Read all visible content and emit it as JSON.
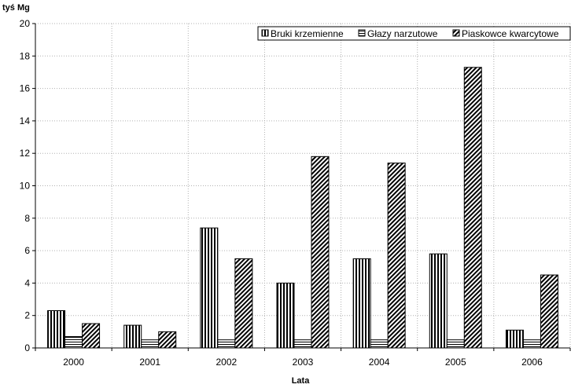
{
  "chart_data": {
    "type": "bar",
    "ylabel": "tyś Mg",
    "xlabel": "Lata",
    "ylim": [
      0,
      20
    ],
    "yticks": [
      0,
      2,
      4,
      6,
      8,
      10,
      12,
      14,
      16,
      18,
      20
    ],
    "categories": [
      "2000",
      "2001",
      "2002",
      "2003",
      "2004",
      "2005",
      "2006"
    ],
    "grid": "horizontal and vertical dotted",
    "legend_position": "top-right",
    "series": [
      {
        "name": "Bruki krzemienne",
        "pattern": "vertical-stripes",
        "values": [
          2.3,
          1.4,
          7.4,
          4.0,
          5.5,
          5.8,
          1.1
        ]
      },
      {
        "name": "Głazy narzutowe",
        "pattern": "horizontal-stripes",
        "values": [
          0.7,
          0.5,
          0.5,
          0.5,
          0.5,
          0.5,
          0.5
        ]
      },
      {
        "name": "Piaskowce kwarcytowe",
        "pattern": "diagonal-stripes",
        "values": [
          1.5,
          1.0,
          5.5,
          11.8,
          11.4,
          17.3,
          4.5
        ]
      }
    ]
  }
}
